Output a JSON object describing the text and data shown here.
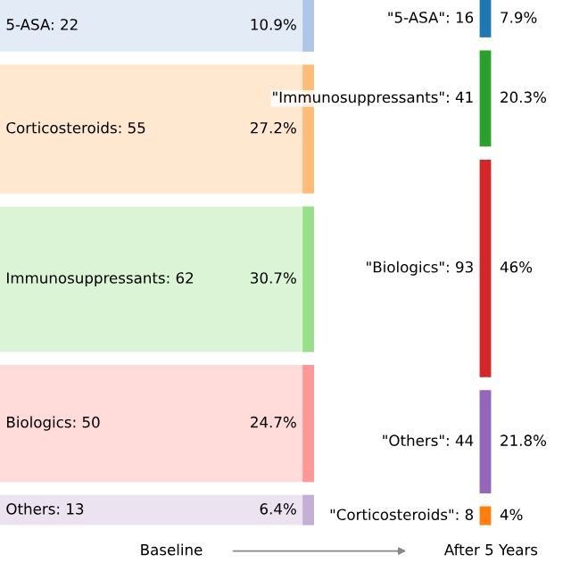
{
  "chart_data": {
    "type": "other",
    "categories": [
      "5-ASA: 22",
      "Corticosteroids: 55",
      "Immunosuppressants: 62",
      "Biologics: 50",
      "Others: 13",
      "\"5-ASA\": 16",
      "\"Immunosuppressants\": 41",
      "\"Biologics\": 93",
      "\"Others\": 44",
      "\"Corticosteroids\": 8"
    ],
    "series": [
      {
        "name": "Baseline",
        "colors": [
          "#aec7e8",
          "#ffbb78",
          "#98df8a",
          "#ff9896",
          "#c5b0d5",
          null,
          null,
          null,
          null,
          null
        ],
        "values": [
          10.9,
          27.2,
          30.7,
          24.7,
          6.4,
          null,
          null,
          null,
          null,
          null
        ],
        "value_labels": [
          "10.9%",
          "27.2%",
          "30.7%",
          "24.7%",
          "6.4%",
          null,
          null,
          null,
          null,
          null
        ]
      },
      {
        "name": "After 5 Years",
        "colors": [
          null,
          null,
          null,
          null,
          null,
          "#1f77b4",
          "#2ca02c",
          "#d62728",
          "#9467bd",
          "#ff7f0e"
        ],
        "values": [
          null,
          null,
          null,
          null,
          null,
          7.9,
          20.3,
          46,
          21.8,
          4
        ],
        "value_labels": [
          null,
          null,
          null,
          null,
          null,
          "7.9%",
          "20.3%",
          "46%",
          "21.8%",
          "4%"
        ]
      }
    ]
  }
}
